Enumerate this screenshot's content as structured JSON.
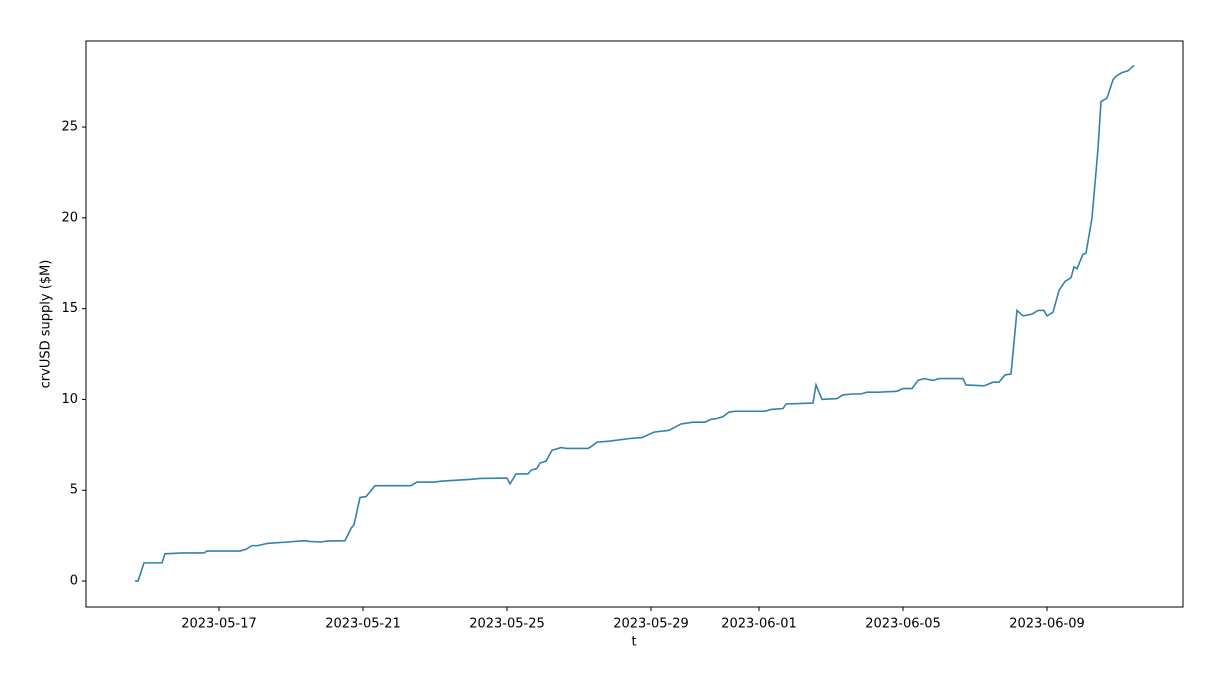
{
  "chart_data": {
    "type": "line",
    "xlabel": "t",
    "ylabel": "crvUSD supply ($M)",
    "color": "#3282ad",
    "x": [
      "2023-05-14T16:00",
      "2023-05-14T18:00",
      "2023-05-14T22:00",
      "2023-05-15T10:00",
      "2023-05-15T12:00",
      "2023-05-16T00:00",
      "2023-05-16T14:00",
      "2023-05-16T16:00",
      "2023-05-17T14:00",
      "2023-05-17T18:00",
      "2023-05-17T22:00",
      "2023-05-18T02:00",
      "2023-05-18T08:00",
      "2023-05-18T22:00",
      "2023-05-19T06:00",
      "2023-05-19T10:00",
      "2023-05-19T12:00",
      "2023-05-19T20:00",
      "2023-05-20T00:00",
      "2023-05-20T12:00",
      "2023-05-20T16:00",
      "2023-05-20T18:00",
      "2023-05-20T22:00",
      "2023-05-21T02:00",
      "2023-05-21T08:00",
      "2023-05-22T08:00",
      "2023-05-22T12:00",
      "2023-05-23T00:00",
      "2023-05-23T04:00",
      "2023-05-24T00:00",
      "2023-05-24T06:00",
      "2023-05-25T00:00",
      "2023-05-25T02:00",
      "2023-05-25T06:00",
      "2023-05-25T14:00",
      "2023-05-25T16:00",
      "2023-05-25T20:00",
      "2023-05-25T22:00",
      "2023-05-26T02:00",
      "2023-05-26T06:00",
      "2023-05-26T08:00",
      "2023-05-26T12:00",
      "2023-05-26T16:00",
      "2023-05-27T06:00",
      "2023-05-27T08:00",
      "2023-05-27T12:00",
      "2023-05-27T20:00",
      "2023-05-28T10:00",
      "2023-05-28T18:00",
      "2023-05-29T02:00",
      "2023-05-29T12:00",
      "2023-05-29T20:00",
      "2023-05-30T04:00",
      "2023-05-30T12:00",
      "2023-05-30T16:00",
      "2023-05-30T20:00",
      "2023-05-31T00:00",
      "2023-05-31T04:00",
      "2023-05-31T08:00",
      "2023-06-01T04:00",
      "2023-06-01T08:00",
      "2023-06-01T16:00",
      "2023-06-01T18:00",
      "2023-06-02T12:00",
      "2023-06-02T14:00",
      "2023-06-02T18:00",
      "2023-06-03T04:00",
      "2023-06-03T08:00",
      "2023-06-03T14:00",
      "2023-06-03T20:00",
      "2023-06-04T00:00",
      "2023-06-04T08:00",
      "2023-06-04T20:00",
      "2023-06-05T00:00",
      "2023-06-05T06:00",
      "2023-06-05T10:00",
      "2023-06-05T14:00",
      "2023-06-05T20:00",
      "2023-06-06T00:00",
      "2023-06-06T16:00",
      "2023-06-06T18:00",
      "2023-06-07T06:00",
      "2023-06-07T12:00",
      "2023-06-07T16:00",
      "2023-06-07T20:00",
      "2023-06-08T00:00",
      "2023-06-08T04:00",
      "2023-06-08T08:00",
      "2023-06-08T14:00",
      "2023-06-08T18:00",
      "2023-06-08T22:00",
      "2023-06-09T00:00",
      "2023-06-09T04:00",
      "2023-06-09T08:00",
      "2023-06-09T12:00",
      "2023-06-09T16:00",
      "2023-06-09T18:00",
      "2023-06-09T20:00",
      "2023-06-10T00:00",
      "2023-06-10T02:00",
      "2023-06-10T06:00",
      "2023-06-10T10:00",
      "2023-06-10T12:00",
      "2023-06-10T16:00",
      "2023-06-10T20:00",
      "2023-06-10T22:00",
      "2023-06-11T02:00",
      "2023-06-11T06:00",
      "2023-06-11T10:00"
    ],
    "values": [
      0,
      0,
      1.0,
      1.0,
      1.5,
      1.55,
      1.55,
      1.65,
      1.65,
      1.75,
      1.95,
      1.95,
      2.07,
      2.15,
      2.2,
      2.22,
      2.18,
      2.15,
      2.2,
      2.22,
      2.9,
      3.1,
      4.6,
      4.65,
      5.25,
      5.25,
      5.45,
      5.45,
      5.5,
      5.6,
      5.65,
      5.67,
      5.35,
      5.9,
      5.9,
      6.1,
      6.2,
      6.5,
      6.6,
      7.2,
      7.25,
      7.35,
      7.3,
      7.3,
      7.4,
      7.65,
      7.7,
      7.85,
      7.9,
      8.2,
      8.3,
      8.65,
      8.75,
      8.75,
      8.9,
      8.95,
      9.05,
      9.3,
      9.35,
      9.35,
      9.45,
      9.5,
      9.75,
      9.8,
      10.8,
      10.0,
      10.05,
      10.25,
      10.3,
      10.3,
      10.4,
      10.4,
      10.45,
      10.6,
      10.6,
      11.05,
      11.15,
      11.05,
      11.15,
      11.15,
      10.8,
      10.75,
      10.95,
      10.95,
      11.35,
      11.4,
      14.9,
      14.6,
      14.7,
      14.9,
      14.9,
      14.6,
      14.8,
      16.0,
      16.5,
      16.7,
      17.3,
      17.2,
      18.0,
      18.05,
      20.0,
      23.8,
      26.4,
      26.6,
      27.6,
      27.8,
      28.0,
      28.1,
      28.4
    ],
    "xlim": [
      "2023-05-13T07:20",
      "2023-06-12T18:40"
    ],
    "xticks": [
      "2023-05-17",
      "2023-05-21",
      "2023-05-25",
      "2023-05-29",
      "2023-06-01",
      "2023-06-05",
      "2023-06-09"
    ],
    "ylim": [
      -1.43,
      29.74
    ],
    "yticks": [
      0,
      5,
      10,
      15,
      20,
      25
    ]
  }
}
